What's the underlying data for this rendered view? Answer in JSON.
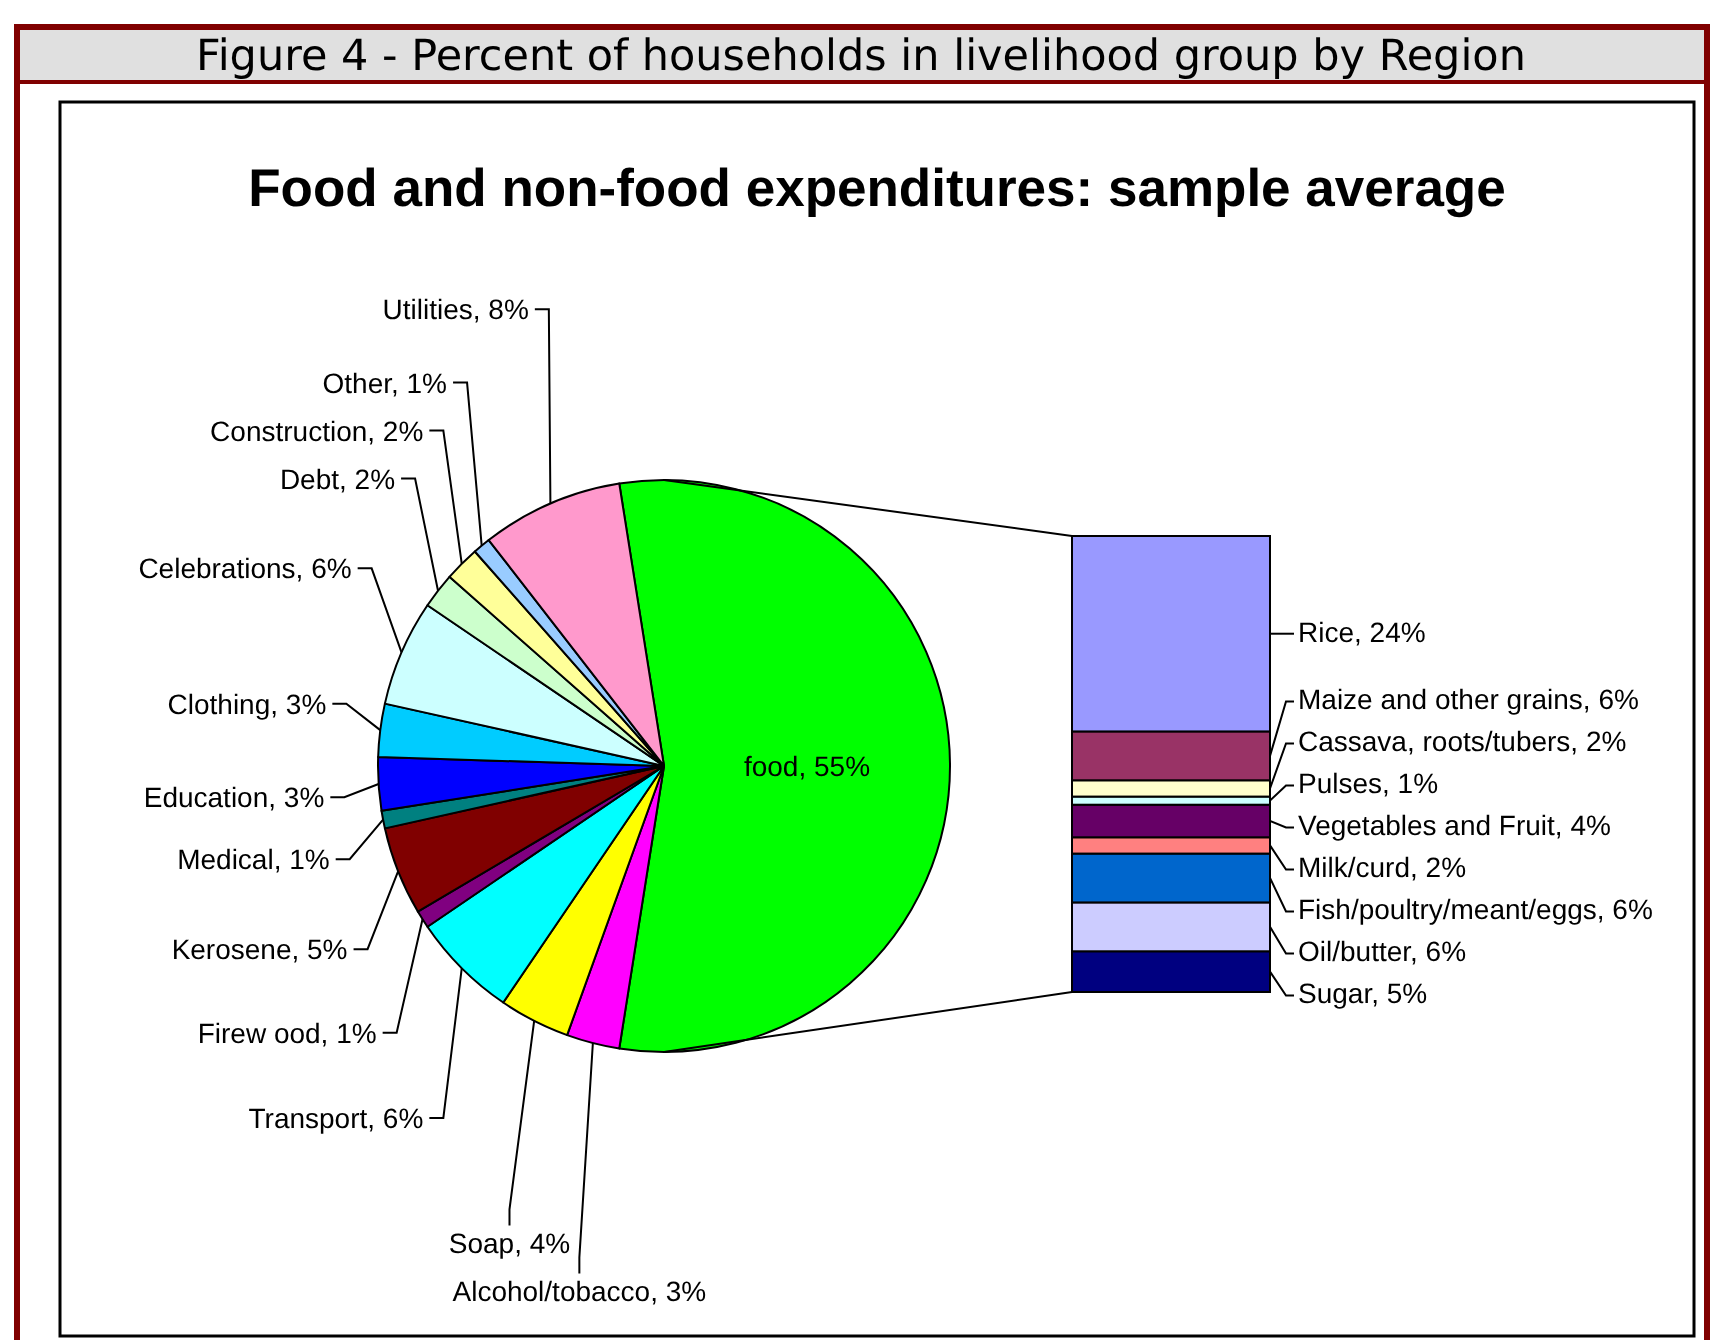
{
  "chart_data": [
    {
      "type": "pie",
      "title": "Food and non-food expenditures: sample average",
      "annotations": [
        "Figure 4 - Percent of households in livelihood group by Region"
      ],
      "categories": [
        "food",
        "Alcohol/tobacco",
        "Soap",
        "Transport",
        "Firew ood",
        "Kerosene",
        "Medical",
        "Education",
        "Clothing",
        "Celebrations",
        "Debt",
        "Construction",
        "Other",
        "Utilities"
      ],
      "values": [
        55,
        3,
        4,
        6,
        1,
        5,
        1,
        3,
        3,
        6,
        2,
        2,
        1,
        8
      ],
      "value_labels": [
        "55%",
        "3%",
        "4%",
        "6%",
        "1%",
        "5%",
        "1%",
        "3%",
        "3%",
        "6%",
        "2%",
        "2%",
        "1%",
        "8%"
      ],
      "colors": [
        "#00ff00",
        "#ff00ff",
        "#ffff00",
        "#00ffff",
        "#800080",
        "#800000",
        "#008080",
        "#0000ff",
        "#00ccff",
        "#ccffff",
        "#ccffcc",
        "#ffff99",
        "#99ccff",
        "#ff99cc"
      ]
    },
    {
      "type": "bar",
      "stacked": true,
      "categories": [
        null
      ],
      "series": [
        {
          "color": "#000080",
          "values": [
            5
          ],
          "value_labels": [
            "Sugar, 5%"
          ]
        },
        {
          "color": "#ccccff",
          "values": [
            6
          ],
          "value_labels": [
            "Oil/butter, 6%"
          ]
        },
        {
          "color": "#0066cc",
          "values": [
            6
          ],
          "value_labels": [
            "Fish/poultry/meant/eggs, 6%"
          ]
        },
        {
          "color": "#ff8080",
          "values": [
            2
          ],
          "value_labels": [
            "Milk/curd, 2%"
          ]
        },
        {
          "color": "#660066",
          "values": [
            4
          ],
          "value_labels": [
            "Vegetables and Fruit, 4%"
          ]
        },
        {
          "color": "#ccffff",
          "values": [
            1
          ],
          "value_labels": [
            "Pulses, 1%"
          ]
        },
        {
          "color": "#ffffcc",
          "values": [
            2
          ],
          "value_labels": [
            "Cassava, roots/tubers, 2%"
          ]
        },
        {
          "color": "#993366",
          "values": [
            6
          ],
          "value_labels": [
            "Maize and other grains, 6%"
          ]
        },
        {
          "color": "#9999ff",
          "values": [
            24
          ],
          "value_labels": [
            "Rice, 24%"
          ]
        }
      ]
    }
  ]
}
